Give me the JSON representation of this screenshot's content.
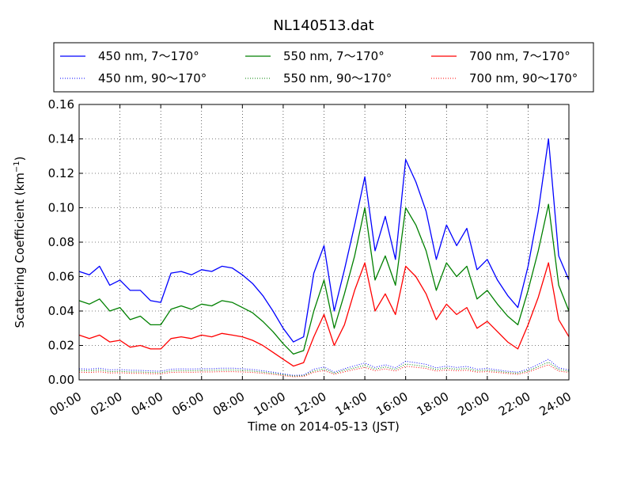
{
  "chart_data": {
    "type": "line",
    "title": "NL140513.dat",
    "xlabel": "Time on 2014-05-13 (JST)",
    "ylabel": "Scattering Coefficient (km",
    "ylabel_sup": "−1",
    "ylabel_end": ")",
    "xlim": [
      "00:00",
      "24:00"
    ],
    "ylim": [
      0,
      0.16
    ],
    "x_ticks": [
      "00:00",
      "02:00",
      "04:00",
      "06:00",
      "08:00",
      "10:00",
      "12:00",
      "14:00",
      "16:00",
      "18:00",
      "20:00",
      "22:00",
      "24:00"
    ],
    "y_ticks": [
      "0.00",
      "0.02",
      "0.04",
      "0.06",
      "0.08",
      "0.10",
      "0.12",
      "0.14",
      "0.16"
    ],
    "grid": true,
    "legend_placement": "top-outside",
    "x_hours": [
      0,
      0.5,
      1,
      1.5,
      2,
      2.5,
      3,
      3.5,
      4,
      4.5,
      5,
      5.5,
      6,
      6.5,
      7,
      7.5,
      8,
      8.5,
      9,
      9.5,
      10,
      10.5,
      11,
      11.5,
      12,
      12.5,
      13,
      13.5,
      14,
      14.5,
      15,
      15.5,
      16,
      16.5,
      17,
      17.5,
      18,
      18.5,
      19,
      19.5,
      20,
      20.5,
      21,
      21.5,
      22,
      22.5,
      23,
      23.5,
      24
    ],
    "series": [
      {
        "name": "450 nm, 7～170°",
        "color": "#0000ff",
        "style": "solid",
        "values": [
          0.063,
          0.061,
          0.066,
          0.055,
          0.058,
          0.052,
          0.052,
          0.046,
          0.045,
          0.062,
          0.063,
          0.061,
          0.064,
          0.063,
          0.066,
          0.065,
          0.061,
          0.056,
          0.049,
          0.04,
          0.03,
          0.022,
          0.025,
          0.062,
          0.078,
          0.04,
          0.064,
          0.09,
          0.118,
          0.075,
          0.095,
          0.07,
          0.128,
          0.115,
          0.098,
          0.07,
          0.09,
          0.078,
          0.088,
          0.064,
          0.07,
          0.058,
          0.049,
          0.042,
          0.066,
          0.098,
          0.14,
          0.072,
          0.058
        ]
      },
      {
        "name": "450 nm, 90～170°",
        "color": "#0000ff",
        "style": "dotted",
        "values": [
          0.0065,
          0.0062,
          0.0068,
          0.0058,
          0.006,
          0.0056,
          0.0055,
          0.0052,
          0.005,
          0.0062,
          0.0064,
          0.0063,
          0.0065,
          0.0065,
          0.0068,
          0.0068,
          0.0065,
          0.006,
          0.0053,
          0.0045,
          0.0035,
          0.0026,
          0.0028,
          0.0062,
          0.0075,
          0.0045,
          0.0065,
          0.0082,
          0.0098,
          0.0072,
          0.0088,
          0.007,
          0.0108,
          0.01,
          0.009,
          0.007,
          0.008,
          0.0072,
          0.0078,
          0.0062,
          0.0066,
          0.0058,
          0.005,
          0.0045,
          0.0062,
          0.009,
          0.012,
          0.007,
          0.0058
        ]
      },
      {
        "name": "550 nm, 7～170°",
        "color": "#008000",
        "style": "solid",
        "values": [
          0.046,
          0.044,
          0.047,
          0.04,
          0.042,
          0.035,
          0.037,
          0.032,
          0.032,
          0.041,
          0.043,
          0.041,
          0.044,
          0.043,
          0.046,
          0.045,
          0.042,
          0.039,
          0.034,
          0.028,
          0.021,
          0.015,
          0.017,
          0.04,
          0.058,
          0.03,
          0.05,
          0.072,
          0.1,
          0.058,
          0.072,
          0.055,
          0.1,
          0.09,
          0.075,
          0.052,
          0.068,
          0.06,
          0.066,
          0.047,
          0.052,
          0.044,
          0.037,
          0.032,
          0.052,
          0.075,
          0.102,
          0.055,
          0.04
        ]
      },
      {
        "name": "550 nm, 90～170°",
        "color": "#008000",
        "style": "dotted",
        "values": [
          0.0055,
          0.0052,
          0.0058,
          0.0048,
          0.005,
          0.0046,
          0.0046,
          0.0043,
          0.0042,
          0.0052,
          0.0054,
          0.0053,
          0.0055,
          0.0055,
          0.0057,
          0.0057,
          0.0055,
          0.0051,
          0.0045,
          0.0038,
          0.003,
          0.0022,
          0.0024,
          0.0052,
          0.0064,
          0.0038,
          0.0056,
          0.007,
          0.0084,
          0.0062,
          0.0075,
          0.006,
          0.0092,
          0.0085,
          0.0077,
          0.006,
          0.0068,
          0.0062,
          0.0066,
          0.0053,
          0.0056,
          0.005,
          0.0043,
          0.0038,
          0.0053,
          0.0077,
          0.0102,
          0.006,
          0.005
        ]
      },
      {
        "name": "700 nm, 7～170°",
        "color": "#ff0000",
        "style": "solid",
        "values": [
          0.026,
          0.024,
          0.026,
          0.022,
          0.023,
          0.019,
          0.02,
          0.018,
          0.018,
          0.024,
          0.025,
          0.024,
          0.026,
          0.025,
          0.027,
          0.026,
          0.025,
          0.023,
          0.02,
          0.016,
          0.012,
          0.008,
          0.01,
          0.025,
          0.038,
          0.02,
          0.032,
          0.052,
          0.068,
          0.04,
          0.05,
          0.038,
          0.066,
          0.06,
          0.05,
          0.035,
          0.044,
          0.038,
          0.042,
          0.03,
          0.034,
          0.028,
          0.022,
          0.018,
          0.032,
          0.048,
          0.068,
          0.035,
          0.025
        ]
      },
      {
        "name": "700 nm, 90～170°",
        "color": "#ff0000",
        "style": "dotted",
        "values": [
          0.0045,
          0.0043,
          0.0047,
          0.004,
          0.0042,
          0.0038,
          0.0038,
          0.0036,
          0.0035,
          0.0043,
          0.0045,
          0.0044,
          0.0046,
          0.0046,
          0.0048,
          0.0048,
          0.0046,
          0.0043,
          0.0038,
          0.0032,
          0.0025,
          0.0018,
          0.002,
          0.0044,
          0.0054,
          0.0032,
          0.0047,
          0.006,
          0.0072,
          0.0053,
          0.0064,
          0.0051,
          0.0079,
          0.0073,
          0.0066,
          0.0051,
          0.0058,
          0.0053,
          0.0056,
          0.0045,
          0.0048,
          0.0043,
          0.0037,
          0.0032,
          0.0045,
          0.0066,
          0.0088,
          0.0051,
          0.0043
        ]
      }
    ]
  }
}
